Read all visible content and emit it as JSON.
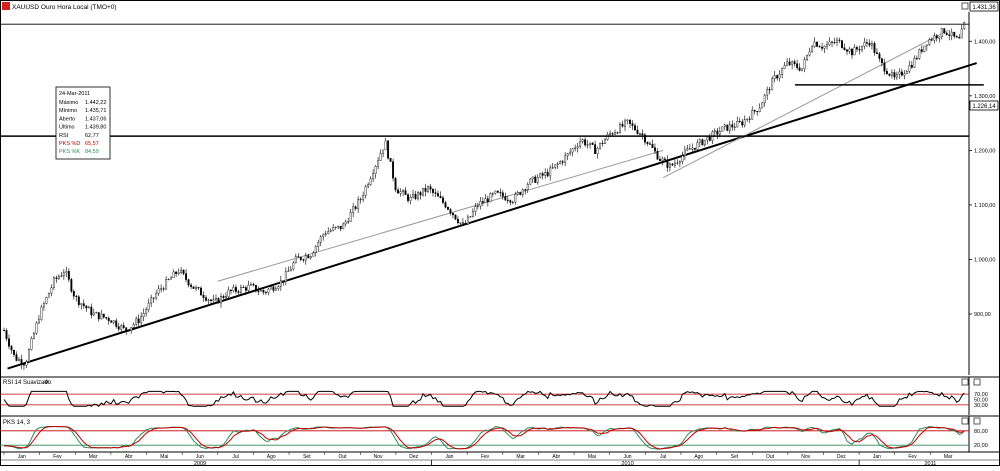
{
  "header": {
    "title": "XAUUSD Ouro Hora Local (TMO+0)",
    "close_price_label": "1.431,36",
    "close_price": 1431.36,
    "ref_price_label": "1.226,14",
    "ref_price": 1226.14
  },
  "info_box": {
    "date": "24-Mar-2011",
    "rows": [
      {
        "label": "Máximo",
        "value": "1.442,22",
        "color": "#000000"
      },
      {
        "label": "Mínimo",
        "value": "1.435,71",
        "color": "#000000"
      },
      {
        "label": "Aberto",
        "value": "1.437,06",
        "color": "#000000"
      },
      {
        "label": "Último",
        "value": "1.439,80",
        "color": "#000000"
      },
      {
        "label": "RSI",
        "value": "62,77",
        "color": "#000000"
      },
      {
        "label": "PKS %D",
        "value": "65,57",
        "color": "#c00000"
      },
      {
        "label": "PKS %K",
        "value": "84,59",
        "color": "#2e8b57"
      }
    ]
  },
  "rsi_panel": {
    "title": "RSI 14 Suavizado",
    "ticks": [
      "70,00",
      "50,00",
      "30,00"
    ],
    "upper": 70,
    "lower": 30
  },
  "pks_panel": {
    "title": "PKS 14, 3",
    "ticks": [
      "80,00",
      "20,00"
    ],
    "upper": 80,
    "lower": 20
  },
  "colors": {
    "candle": "#000000",
    "trendline": "#000000",
    "thin_trend": "#999999",
    "rsi_band": "#c00000",
    "pks_d": "#c00000",
    "pks_k": "#2e8b57",
    "pks_band_low": "#2e8b57"
  },
  "chart_data": {
    "type": "candlestick",
    "title": "XAUUSD Ouro Hora Local (TMO+0)",
    "price_ticks": [
      "1.400,00",
      "1.300,00",
      "1.200,00",
      "1.100,00",
      "1.000,00",
      "900,00"
    ],
    "price_tick_values": [
      1400,
      1300,
      1200,
      1100,
      1000,
      900
    ],
    "ylim": [
      790,
      1450
    ],
    "x_months": [
      "Jan",
      "Fev",
      "Mar",
      "Abr",
      "Mai",
      "Jun",
      "Jul",
      "Ago",
      "Set",
      "Out",
      "Nov",
      "Dez",
      "Jan",
      "Fev",
      "Mar",
      "Abr",
      "Mai",
      "Jun",
      "Jul",
      "Ago",
      "Set",
      "Out",
      "Nov",
      "Dez",
      "Jan",
      "Fev",
      "Mar"
    ],
    "x_years": [
      "2009",
      "2010",
      "2011"
    ],
    "price_path": [
      {
        "month": 0.0,
        "price": 870
      },
      {
        "month": 0.3,
        "price": 820
      },
      {
        "month": 0.6,
        "price": 810
      },
      {
        "month": 1.0,
        "price": 900
      },
      {
        "month": 1.4,
        "price": 960
      },
      {
        "month": 1.7,
        "price": 980
      },
      {
        "month": 2.0,
        "price": 930
      },
      {
        "month": 2.5,
        "price": 900
      },
      {
        "month": 3.0,
        "price": 890
      },
      {
        "month": 3.4,
        "price": 870
      },
      {
        "month": 3.8,
        "price": 890
      },
      {
        "month": 4.3,
        "price": 940
      },
      {
        "month": 4.9,
        "price": 980
      },
      {
        "month": 5.3,
        "price": 950
      },
      {
        "month": 5.9,
        "price": 920
      },
      {
        "month": 6.3,
        "price": 940
      },
      {
        "month": 6.9,
        "price": 950
      },
      {
        "month": 7.3,
        "price": 940
      },
      {
        "month": 7.8,
        "price": 960
      },
      {
        "month": 8.2,
        "price": 1000
      },
      {
        "month": 8.6,
        "price": 1010
      },
      {
        "month": 9.0,
        "price": 1050
      },
      {
        "month": 9.5,
        "price": 1060
      },
      {
        "month": 10.0,
        "price": 1110
      },
      {
        "month": 10.4,
        "price": 1170
      },
      {
        "month": 10.7,
        "price": 1215
      },
      {
        "month": 11.0,
        "price": 1130
      },
      {
        "month": 11.4,
        "price": 1110
      },
      {
        "month": 11.9,
        "price": 1130
      },
      {
        "month": 12.4,
        "price": 1100
      },
      {
        "month": 12.9,
        "price": 1060
      },
      {
        "month": 13.3,
        "price": 1100
      },
      {
        "month": 13.8,
        "price": 1120
      },
      {
        "month": 14.3,
        "price": 1110
      },
      {
        "month": 14.7,
        "price": 1140
      },
      {
        "month": 15.3,
        "price": 1160
      },
      {
        "month": 15.8,
        "price": 1190
      },
      {
        "month": 16.2,
        "price": 1220
      },
      {
        "month": 16.6,
        "price": 1200
      },
      {
        "month": 17.0,
        "price": 1230
      },
      {
        "month": 17.5,
        "price": 1250
      },
      {
        "month": 17.9,
        "price": 1230
      },
      {
        "month": 18.4,
        "price": 1185
      },
      {
        "month": 18.7,
        "price": 1170
      },
      {
        "month": 19.2,
        "price": 1200
      },
      {
        "month": 19.7,
        "price": 1220
      },
      {
        "month": 20.2,
        "price": 1240
      },
      {
        "month": 20.7,
        "price": 1250
      },
      {
        "month": 21.2,
        "price": 1280
      },
      {
        "month": 21.6,
        "price": 1330
      },
      {
        "month": 22.0,
        "price": 1360
      },
      {
        "month": 22.4,
        "price": 1350
      },
      {
        "month": 22.7,
        "price": 1400
      },
      {
        "month": 23.0,
        "price": 1390
      },
      {
        "month": 23.4,
        "price": 1400
      },
      {
        "month": 23.8,
        "price": 1380
      },
      {
        "month": 24.3,
        "price": 1400
      },
      {
        "month": 24.6,
        "price": 1360
      },
      {
        "month": 25.0,
        "price": 1330
      },
      {
        "month": 25.5,
        "price": 1360
      },
      {
        "month": 25.9,
        "price": 1400
      },
      {
        "month": 26.4,
        "price": 1420
      },
      {
        "month": 26.6,
        "price": 1410
      },
      {
        "month": 26.8,
        "price": 1400
      },
      {
        "month": 27.0,
        "price": 1440
      }
    ],
    "trendlines": [
      {
        "name": "main-support",
        "from": {
          "month": 0.1,
          "price": 800
        },
        "to": {
          "month": 27.3,
          "price": 1360
        },
        "width": 2
      },
      {
        "name": "recent-support",
        "from": {
          "month": 18.5,
          "price": 1150
        },
        "to": {
          "month": 26.5,
          "price": 1420
        },
        "width": 1
      },
      {
        "name": "mid-support",
        "from": {
          "month": 6.0,
          "price": 960
        },
        "to": {
          "month": 18.5,
          "price": 1200
        },
        "width": 1
      }
    ],
    "horizontal_levels": [
      {
        "name": "resistance-1226",
        "price": 1226.14,
        "width": 1.5
      },
      {
        "name": "support-1320",
        "price": 1320,
        "from_month": 22.2,
        "to_month": 27.5,
        "width": 1.5
      }
    ]
  }
}
